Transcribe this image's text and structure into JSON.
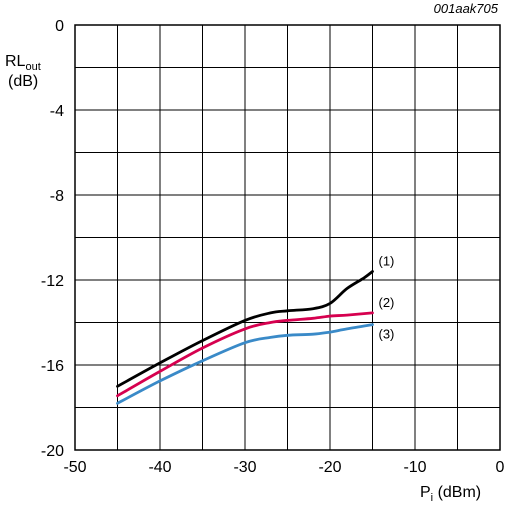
{
  "chart_data": {
    "type": "line",
    "reference_code": "001aak705",
    "xlabel": {
      "main": "P",
      "sub": "i",
      "unit": " (dBm)"
    },
    "ylabel": {
      "main": "RL",
      "sub": "out",
      "unit": "(dB)"
    },
    "xlim": [
      -50,
      0
    ],
    "ylim": [
      -20,
      0
    ],
    "x_ticks": [
      "-50",
      "-40",
      "-30",
      "-20",
      "-10",
      "0"
    ],
    "y_ticks": [
      "0",
      "-4",
      "-8",
      "-12",
      "-16",
      "-20"
    ],
    "grid": true,
    "series": [
      {
        "name": "(1)",
        "color": "#000000",
        "x": [
          -45,
          -40,
          -35,
          -30,
          -27,
          -25,
          -22,
          -20,
          -18,
          -16,
          -15
        ],
        "y": [
          -17.0,
          -15.9,
          -14.85,
          -13.9,
          -13.55,
          -13.45,
          -13.35,
          -13.1,
          -12.4,
          -11.9,
          -11.6
        ]
      },
      {
        "name": "(2)",
        "color": "#d6004f",
        "x": [
          -45,
          -40,
          -35,
          -30,
          -27,
          -25,
          -22,
          -20,
          -18,
          -15
        ],
        "y": [
          -17.45,
          -16.3,
          -15.2,
          -14.3,
          -14.0,
          -13.9,
          -13.8,
          -13.7,
          -13.65,
          -13.55
        ]
      },
      {
        "name": "(3)",
        "color": "#3a8ac8",
        "x": [
          -45,
          -40,
          -35,
          -30,
          -27,
          -25,
          -22,
          -20,
          -18,
          -15
        ],
        "y": [
          -17.8,
          -16.75,
          -15.8,
          -14.95,
          -14.7,
          -14.6,
          -14.55,
          -14.45,
          -14.3,
          -14.1
        ]
      }
    ]
  }
}
